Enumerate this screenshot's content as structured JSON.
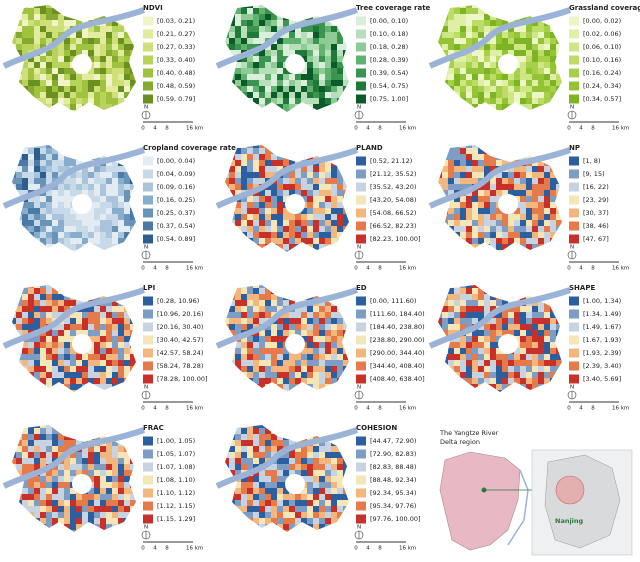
{
  "panels": [
    {
      "title": "NDVI",
      "legend": [
        {
          "label": "[0.03, 0.21)",
          "color": "#f1f4c8"
        },
        {
          "label": "[0.21, 0.27)",
          "color": "#e2eb9e"
        },
        {
          "label": "[0.27, 0.33)",
          "color": "#cfe07a"
        },
        {
          "label": "[0.33, 0.40)",
          "color": "#b8d35a"
        },
        {
          "label": "[0.40, 0.48)",
          "color": "#9fc23f"
        },
        {
          "label": "[0.48, 0.59)",
          "color": "#84ab2e"
        },
        {
          "label": "[0.59, 0.79]",
          "color": "#6a9120"
        }
      ]
    },
    {
      "title": "Tree coverage rate",
      "legend": [
        {
          "label": "[0.00, 0.10)",
          "color": "#d9eedb"
        },
        {
          "label": "[0.10, 0.18)",
          "color": "#b6dfba"
        },
        {
          "label": "[0.18, 0.28)",
          "color": "#8ecb95"
        },
        {
          "label": "[0.28, 0.39)",
          "color": "#62b26f"
        },
        {
          "label": "[0.39, 0.54)",
          "color": "#3b9550"
        },
        {
          "label": "[0.54, 0.75)",
          "color": "#1f7a3a"
        },
        {
          "label": "[0.75, 1.00]",
          "color": "#0c5a28"
        }
      ]
    },
    {
      "title": "Grassland coverage",
      "legend": [
        {
          "label": "[0.00, 0.02)",
          "color": "#eef6c8"
        },
        {
          "label": "[0.02, 0.06)",
          "color": "#e0efa6"
        },
        {
          "label": "[0.06, 0.10)",
          "color": "#cfe685"
        },
        {
          "label": "[0.10, 0.16)",
          "color": "#bcdc66"
        },
        {
          "label": "[0.16, 0.24)",
          "color": "#a7d04a"
        },
        {
          "label": "[0.24, 0.34)",
          "color": "#92c435"
        },
        {
          "label": "[0.34, 0.57]",
          "color": "#7cb424"
        }
      ]
    },
    {
      "title": "Cropland coverage rate",
      "legend": [
        {
          "label": "[0.00, 0.04)",
          "color": "#e3ecf3"
        },
        {
          "label": "[0.04, 0.09)",
          "color": "#c8d9e8"
        },
        {
          "label": "[0.09, 0.16)",
          "color": "#a9c4db"
        },
        {
          "label": "[0.16, 0.25)",
          "color": "#88accb"
        },
        {
          "label": "[0.25, 0.37)",
          "color": "#6894b9"
        },
        {
          "label": "[0.37, 0.54)",
          "color": "#4a7aa5"
        },
        {
          "label": "[0.54, 0.89]",
          "color": "#2e5e8c"
        }
      ]
    },
    {
      "title": "PLAND",
      "legend": [
        {
          "label": "[0.52, 21.12)",
          "color": "#2c5fa0"
        },
        {
          "label": "[21.12, 35.52)",
          "color": "#7d9dc4"
        },
        {
          "label": "[35.52, 43.20)",
          "color": "#c7d3e0"
        },
        {
          "label": "[43.20, 54.08)",
          "color": "#f5e6b8"
        },
        {
          "label": "[54.08, 66.52)",
          "color": "#f3b77e"
        },
        {
          "label": "[66.52, 82.23)",
          "color": "#e57a4b"
        },
        {
          "label": "[82.23, 100.00]",
          "color": "#c8312a"
        }
      ]
    },
    {
      "title": "NP",
      "legend": [
        {
          "label": "[1, 8)",
          "color": "#2c5fa0"
        },
        {
          "label": "[9, 15)",
          "color": "#7d9dc4"
        },
        {
          "label": "[16, 22)",
          "color": "#c7d3e0"
        },
        {
          "label": "[23, 29)",
          "color": "#f5e6b8"
        },
        {
          "label": "[30, 37)",
          "color": "#f3b77e"
        },
        {
          "label": "[38, 46)",
          "color": "#e57a4b"
        },
        {
          "label": "[47, 67]",
          "color": "#c8312a"
        }
      ]
    },
    {
      "title": "LPI",
      "legend": [
        {
          "label": "[0.28, 10.96)",
          "color": "#2c5fa0"
        },
        {
          "label": "[10.96, 20.16)",
          "color": "#7d9dc4"
        },
        {
          "label": "[20.16, 30.40)",
          "color": "#c7d3e0"
        },
        {
          "label": "[30.40, 42.57)",
          "color": "#f5e6b8"
        },
        {
          "label": "[42.57, 58.24)",
          "color": "#f3b77e"
        },
        {
          "label": "[58.24, 78.28)",
          "color": "#e57a4b"
        },
        {
          "label": "[78.28, 100.00]",
          "color": "#c8312a"
        }
      ]
    },
    {
      "title": "ED",
      "legend": [
        {
          "label": "[0.00, 111.60)",
          "color": "#2c5fa0"
        },
        {
          "label": "[111.60, 184.40)",
          "color": "#7d9dc4"
        },
        {
          "label": "[184.40, 238.80)",
          "color": "#c7d3e0"
        },
        {
          "label": "[238.80, 290.00)",
          "color": "#f5e6b8"
        },
        {
          "label": "[290.00, 344.40)",
          "color": "#f3b77e"
        },
        {
          "label": "[344.40, 408.40)",
          "color": "#e57a4b"
        },
        {
          "label": "[408.40, 638.40]",
          "color": "#c8312a"
        }
      ]
    },
    {
      "title": "SHAPE",
      "legend": [
        {
          "label": "[1.00, 1.34)",
          "color": "#2c5fa0"
        },
        {
          "label": "[1.34, 1.49)",
          "color": "#7d9dc4"
        },
        {
          "label": "[1.49, 1.67)",
          "color": "#c7d3e0"
        },
        {
          "label": "[1.67, 1.93)",
          "color": "#f5e6b8"
        },
        {
          "label": "[1.93, 2.39)",
          "color": "#f3b77e"
        },
        {
          "label": "[2.39, 3.40)",
          "color": "#e57a4b"
        },
        {
          "label": "[3.40, 5.69]",
          "color": "#c8312a"
        }
      ]
    },
    {
      "title": "FRAC",
      "legend": [
        {
          "label": "[1.00, 1.05)",
          "color": "#2c5fa0"
        },
        {
          "label": "[1.05, 1.07)",
          "color": "#7d9dc4"
        },
        {
          "label": "[1.07, 1.08)",
          "color": "#c7d3e0"
        },
        {
          "label": "[1.08, 1.10)",
          "color": "#f5e6b8"
        },
        {
          "label": "[1.10, 1.12)",
          "color": "#f3b77e"
        },
        {
          "label": "[1.12, 1.15)",
          "color": "#e57a4b"
        },
        {
          "label": "[1.15, 1.29]",
          "color": "#c8312a"
        }
      ]
    },
    {
      "title": "COHESION",
      "legend": [
        {
          "label": "[44.47, 72.90)",
          "color": "#2c5fa0"
        },
        {
          "label": "[72.90, 82.83)",
          "color": "#7d9dc4"
        },
        {
          "label": "[82.83, 88.48)",
          "color": "#c7d3e0"
        },
        {
          "label": "[88.48, 92.34)",
          "color": "#f5e6b8"
        },
        {
          "label": "[92.34, 95.34)",
          "color": "#f3b77e"
        },
        {
          "label": "[95.34, 97.76)",
          "color": "#e57a4b"
        },
        {
          "label": "[97.76, 100.00]",
          "color": "#c8312a"
        }
      ]
    }
  ],
  "north": "N",
  "scale": [
    "0",
    "4",
    "8",
    "16 km"
  ],
  "inset": {
    "title": [
      "The Yangtze  River",
      "Delta region"
    ],
    "city": "Nanjing"
  }
}
